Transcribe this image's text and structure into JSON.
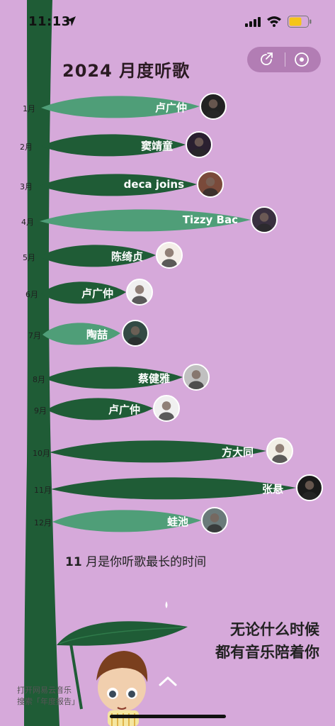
{
  "status_bar": {
    "time": "11:13"
  },
  "header": {
    "title": "2024 月度听歌"
  },
  "months": [
    {
      "month": "1月",
      "artist": "卢广仲",
      "leaf": "light"
    },
    {
      "month": "2月",
      "artist": "窦靖童",
      "leaf": "dark"
    },
    {
      "month": "3月",
      "artist": "deca joins",
      "leaf": "dark"
    },
    {
      "month": "4月",
      "artist": "Tizzy Bac",
      "leaf": "light"
    },
    {
      "month": "5月",
      "artist": "陈绮贞",
      "leaf": "dark"
    },
    {
      "month": "6月",
      "artist": "卢广仲",
      "leaf": "dark"
    },
    {
      "month": "7月",
      "artist": "陶喆",
      "leaf": "light"
    },
    {
      "month": "8月",
      "artist": "蔡健雅",
      "leaf": "dark"
    },
    {
      "month": "9月",
      "artist": "卢广仲",
      "leaf": "dark"
    },
    {
      "month": "10月",
      "artist": "方大同",
      "leaf": "dark"
    },
    {
      "month": "11月",
      "artist": "张悬",
      "leaf": "dark"
    },
    {
      "month": "12月",
      "artist": "蛙池",
      "leaf": "light"
    }
  ],
  "summary": {
    "highlight": "11",
    "text": "月是你听歌最长的时间"
  },
  "slogan": {
    "line1": "无论什么时候",
    "line2": "都有音乐陪着你"
  },
  "footnote": {
    "line1": "打开网易云音乐",
    "line2": "搜索「年度报告」"
  },
  "colors": {
    "background": "#d6a9da",
    "dark_green": "#1f5c36",
    "light_green": "#4f9e78"
  }
}
